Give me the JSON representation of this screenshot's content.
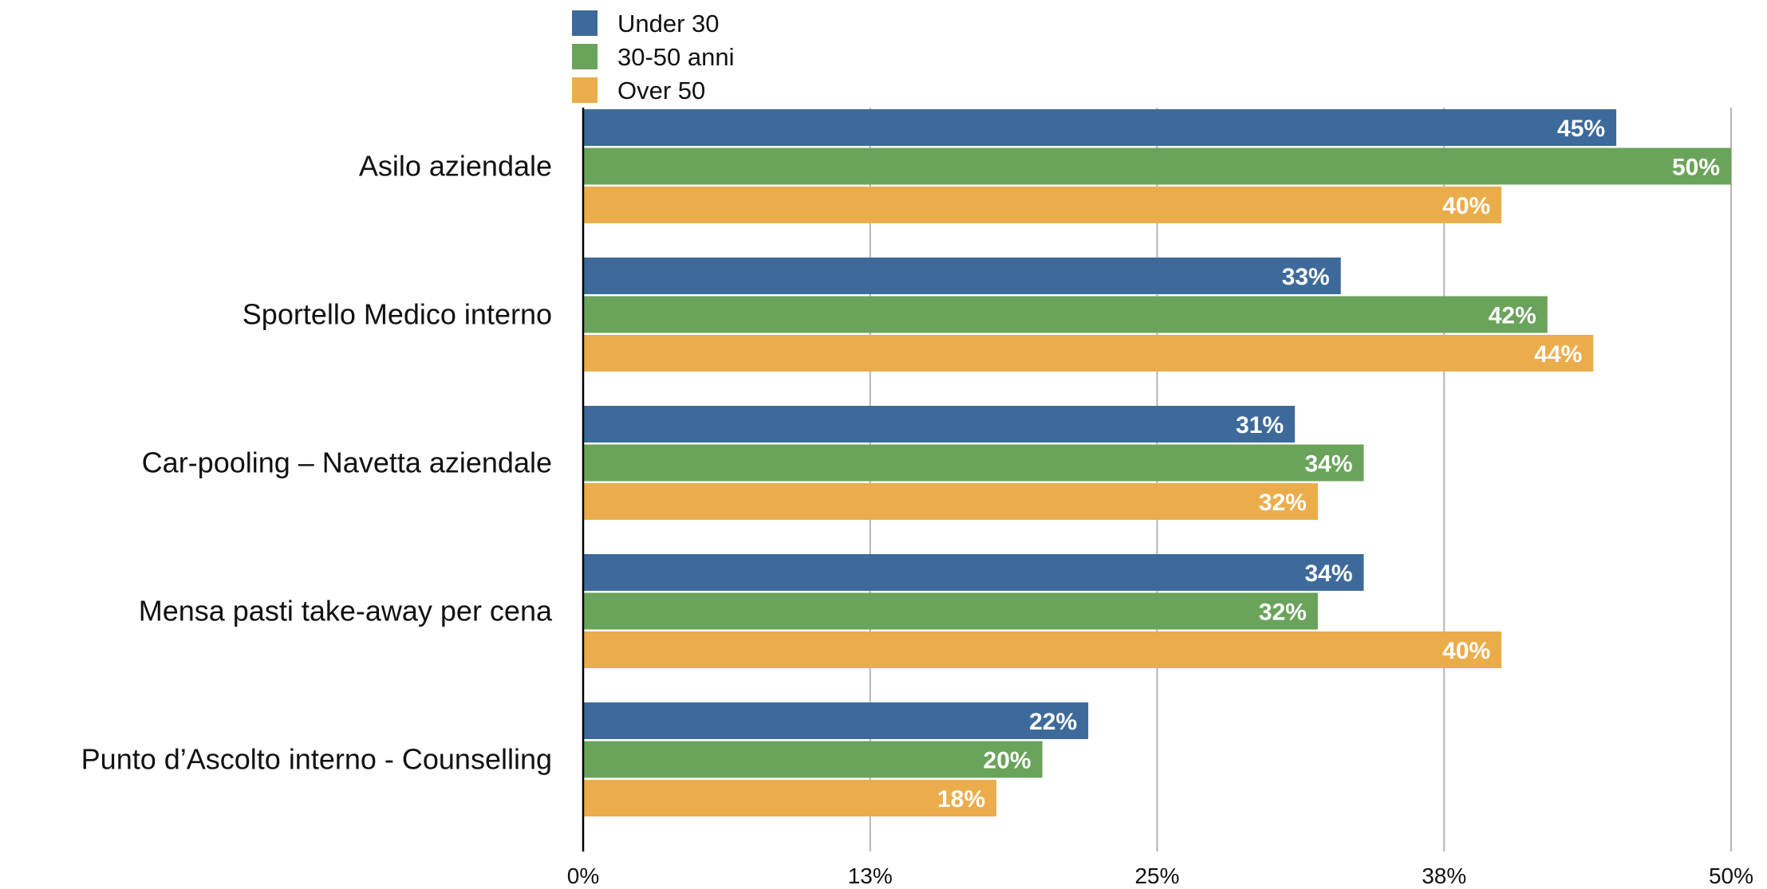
{
  "chart_data": {
    "type": "bar",
    "orientation": "horizontal",
    "categories": [
      "Asilo aziendale",
      "Sportello Medico interno",
      "Car-pooling – Navetta aziendale",
      "Mensa pasti take-away per cena",
      "Punto d’Ascolto interno - Counselling"
    ],
    "series": [
      {
        "name": "Under 30",
        "color": "#3d6a9a",
        "values": [
          45,
          33,
          31,
          34,
          22
        ],
        "labels": [
          "45%",
          "33%",
          "31%",
          "34%",
          "22%"
        ]
      },
      {
        "name": "30-50 anni",
        "color": "#6aa35a",
        "values": [
          50,
          42,
          34,
          32,
          20
        ],
        "labels": [
          "50%",
          "42%",
          "34%",
          "32%",
          "20%"
        ]
      },
      {
        "name": "Over 50",
        "color": "#ebad4b",
        "values": [
          40,
          44,
          32,
          40,
          18
        ],
        "labels": [
          "40%",
          "44%",
          "32%",
          "40%",
          "18%"
        ]
      }
    ],
    "xlim": [
      0,
      50
    ],
    "xticks": [
      0,
      12.5,
      25,
      37.5,
      50
    ],
    "xtick_labels": [
      "0%",
      "13%",
      "25%",
      "38%",
      "50%"
    ],
    "grid": true,
    "legend_position": "top"
  }
}
